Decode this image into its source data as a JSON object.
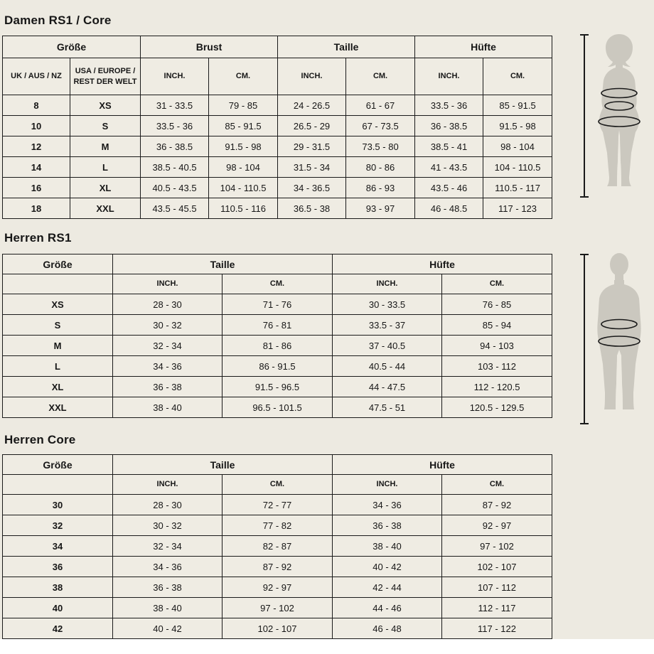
{
  "page": {
    "background_color": "#EDEAE1",
    "table_background_color": "#EFECE3",
    "border_color": "#1A1A1A",
    "text_color": "#161616",
    "silhouette_color": "#CBC8BF"
  },
  "sections": [
    {
      "title": "Damen RS1 / Core",
      "figure_icon": "female-body-measurement-icon",
      "figure_measurements": [
        "Brust",
        "Taille",
        "Hüfte"
      ],
      "table": {
        "col_widths": [
          "95px",
          "99px",
          "96px",
          "97px",
          "96px",
          "97px",
          "96px",
          "97px"
        ],
        "groups": [
          {
            "label": "Größe",
            "span": 2
          },
          {
            "label": "Brust",
            "span": 2
          },
          {
            "label": "Taille",
            "span": 2
          },
          {
            "label": "Hüfte",
            "span": 2
          }
        ],
        "subheader": [
          "UK / AUS / NZ",
          "USA / EUROPE / REST DER WELT",
          "INCH.",
          "CM.",
          "INCH.",
          "CM.",
          "INCH.",
          "CM."
        ],
        "size_cols": 2,
        "rows": [
          [
            "8",
            "XS",
            "31 - 33.5",
            "79 - 85",
            "24 - 26.5",
            "61 - 67",
            "33.5 - 36",
            "85 - 91.5"
          ],
          [
            "10",
            "S",
            "33.5 - 36",
            "85 - 91.5",
            "26.5 - 29",
            "67 - 73.5",
            "36 - 38.5",
            "91.5 - 98"
          ],
          [
            "12",
            "M",
            "36 - 38.5",
            "91.5 - 98",
            "29 - 31.5",
            "73.5 - 80",
            "38.5 - 41",
            "98 - 104"
          ],
          [
            "14",
            "L",
            "38.5 - 40.5",
            "98 - 104",
            "31.5 - 34",
            "80 - 86",
            "41 - 43.5",
            "104 - 110.5"
          ],
          [
            "16",
            "XL",
            "40.5 - 43.5",
            "104 - 110.5",
            "34 - 36.5",
            "86 - 93",
            "43.5 - 46",
            "110.5 - 117"
          ],
          [
            "18",
            "XXL",
            "43.5 - 45.5",
            "110.5 - 116",
            "36.5 - 38",
            "93 - 97",
            "46 - 48.5",
            "117 - 123"
          ]
        ]
      }
    },
    {
      "title": "Herren RS1",
      "figure_icon": "male-body-measurement-icon",
      "figure_measurements": [
        "Taille",
        "Hüfte"
      ],
      "table": {
        "col_widths": [
          "155px",
          "154px",
          "155px",
          "154px",
          "155px"
        ],
        "groups": [
          {
            "label": "Größe",
            "span": 1
          },
          {
            "label": "Taille",
            "span": 2
          },
          {
            "label": "Hüfte",
            "span": 2
          }
        ],
        "subheader": [
          "",
          "INCH.",
          "CM.",
          "INCH.",
          "CM."
        ],
        "size_cols": 1,
        "rows": [
          [
            "XS",
            "28 - 30",
            "71 - 76",
            "30 - 33.5",
            "76 - 85"
          ],
          [
            "S",
            "30 - 32",
            "76 - 81",
            "33.5 - 37",
            "85 - 94"
          ],
          [
            "M",
            "32 - 34",
            "81 - 86",
            "37 - 40.5",
            "94 - 103"
          ],
          [
            "L",
            "34 - 36",
            "86 - 91.5",
            "40.5 - 44",
            "103 - 112"
          ],
          [
            "XL",
            "36 - 38",
            "91.5 - 96.5",
            "44 - 47.5",
            "112 - 120.5"
          ],
          [
            "XXL",
            "38 - 40",
            "96.5 - 101.5",
            "47.5 - 51",
            "120.5 - 129.5"
          ]
        ]
      }
    },
    {
      "title": "Herren Core",
      "figure_icon": null,
      "figure_measurements": [],
      "table": {
        "col_widths": [
          "155px",
          "154px",
          "155px",
          "154px",
          "155px"
        ],
        "groups": [
          {
            "label": "Größe",
            "span": 1
          },
          {
            "label": "Taille",
            "span": 2
          },
          {
            "label": "Hüfte",
            "span": 2
          }
        ],
        "subheader": [
          "",
          "INCH.",
          "CM.",
          "INCH.",
          "CM."
        ],
        "size_cols": 1,
        "rows": [
          [
            "30",
            "28 - 30",
            "72 - 77",
            "34 - 36",
            "87 - 92"
          ],
          [
            "32",
            "30 - 32",
            "77 - 82",
            "36 - 38",
            "92 - 97"
          ],
          [
            "34",
            "32 - 34",
            "82 - 87",
            "38 - 40",
            "97 - 102"
          ],
          [
            "36",
            "34 - 36",
            "87 - 92",
            "40 - 42",
            "102 - 107"
          ],
          [
            "38",
            "36 - 38",
            "92 - 97",
            "42 - 44",
            "107 - 112"
          ],
          [
            "40",
            "38 - 40",
            "97 - 102",
            "44 - 46",
            "112 - 117"
          ],
          [
            "42",
            "40 - 42",
            "102 - 107",
            "46 - 48",
            "117 - 122"
          ]
        ]
      }
    }
  ]
}
